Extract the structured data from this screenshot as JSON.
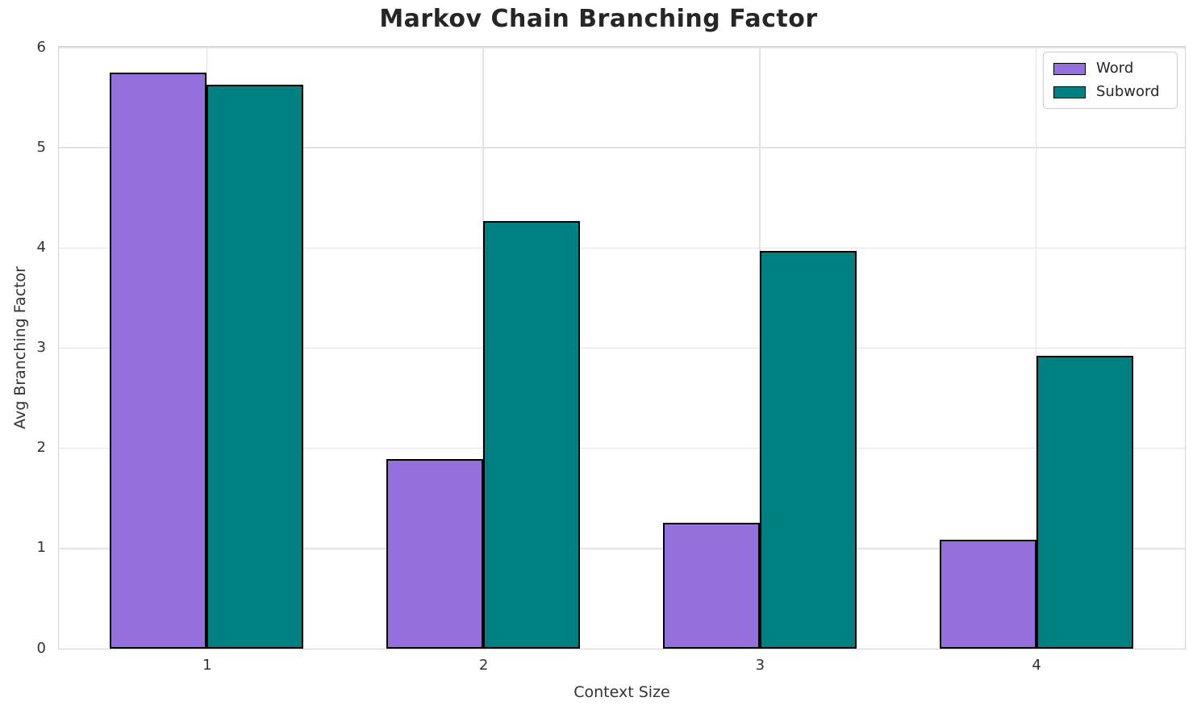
{
  "chart_data": {
    "type": "bar",
    "title": "Markov Chain Branching Factor",
    "xlabel": "Context Size",
    "ylabel": "Avg Branching Factor",
    "categories": [
      "1",
      "2",
      "3",
      "4"
    ],
    "x": [
      1,
      2,
      3,
      4
    ],
    "series": [
      {
        "name": "Word",
        "color": "#9370DB",
        "values": [
          5.75,
          1.89,
          1.26,
          1.09
        ]
      },
      {
        "name": "Subword",
        "color": "#008080",
        "values": [
          5.63,
          4.27,
          3.97,
          2.92
        ]
      }
    ],
    "bar_width": 0.35,
    "edge_color": "#000000",
    "ylim": [
      0,
      6
    ],
    "yticks": [
      0,
      1,
      2,
      3,
      4,
      5,
      6
    ],
    "xlim": [
      0.465,
      4.535
    ],
    "grid": true,
    "grid_color": "#e3e3e3",
    "legend": {
      "position": "upper right",
      "labels": [
        "Word",
        "Subword"
      ]
    }
  }
}
